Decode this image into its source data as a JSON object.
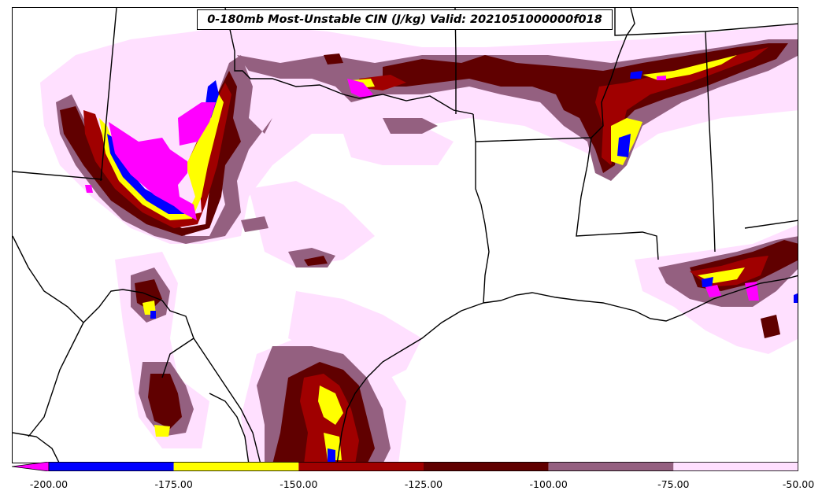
{
  "title": "0-180mb Most-Unstable CIN (J/kg) Valid: 2021051000000f018",
  "colorbar": {
    "bins": [
      {
        "from": -200,
        "to": -175,
        "color": "#0000ff"
      },
      {
        "from": -175,
        "to": -150,
        "color": "#ffff00"
      },
      {
        "from": -150,
        "to": -125,
        "color": "#a00000"
      },
      {
        "from": -125,
        "to": -100,
        "color": "#600000"
      },
      {
        "from": -100,
        "to": -75,
        "color": "#946080"
      },
      {
        "from": -75,
        "to": -50,
        "color": "#ffe0ff"
      }
    ],
    "underflow_color": "#ff00ff",
    "tick_labels": [
      "-200.00",
      "-175.00",
      "-150.00",
      "-125.00",
      "-100.00",
      "-75.00",
      "-50.00"
    ]
  },
  "colors": {
    "magenta": "#ff00ff",
    "blue": "#0000ff",
    "yellow": "#ffff00",
    "red": "#a00000",
    "darkred": "#600000",
    "mauve": "#946080",
    "pink": "#ffe0ff"
  }
}
